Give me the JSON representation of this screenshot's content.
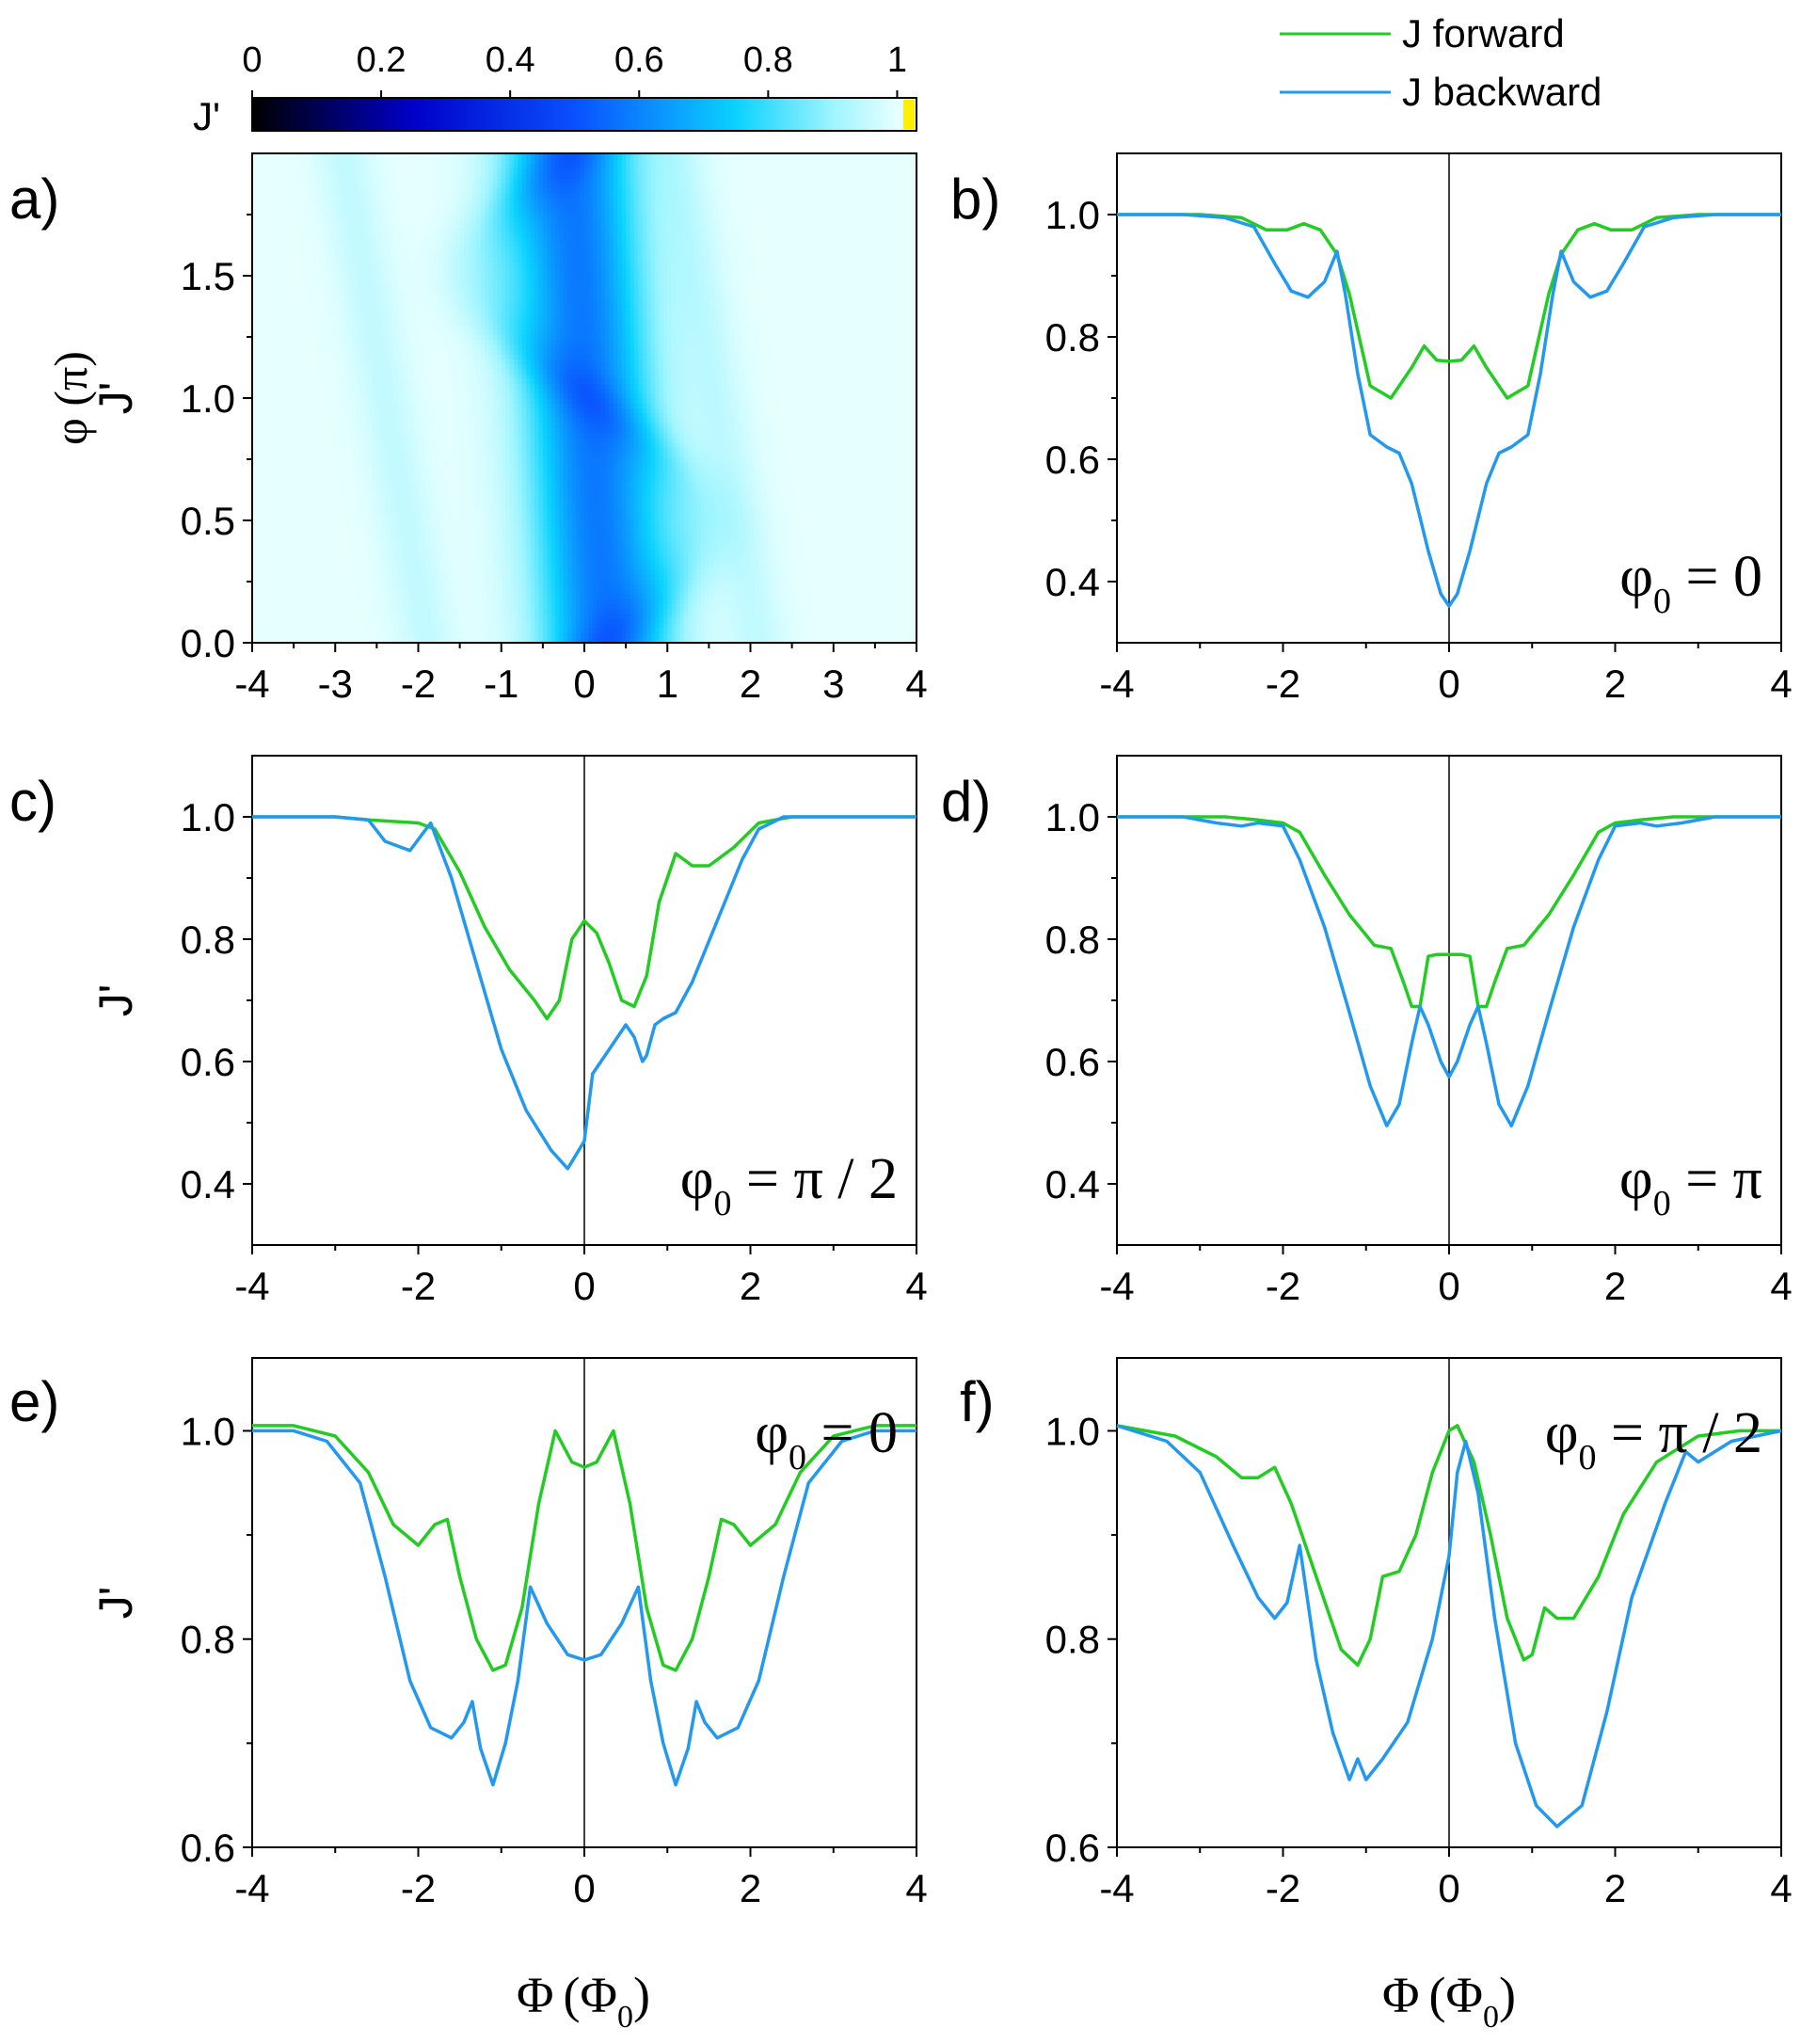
{
  "figure": {
    "xlabel_main": "Φ",
    "xlabel_open": "(Φ",
    "xlabel_sub": "0",
    "xlabel_close": ")"
  },
  "colors": {
    "forward": "#22cc22",
    "backward": "#2299ee",
    "axis": "#000000",
    "highlight": "#ffee00"
  },
  "legend": {
    "items": [
      {
        "label": "J forward",
        "color": "#22cc22"
      },
      {
        "label": "J backward",
        "color": "#2299ee"
      }
    ]
  },
  "colorbar": {
    "label": "J'",
    "ticks": [
      "0",
      "0.2",
      "0.4",
      "0.6",
      "0.8",
      "1"
    ],
    "tick_values": [
      0,
      0.2,
      0.4,
      0.6,
      0.8,
      1.0
    ],
    "range": [
      0,
      1.03
    ],
    "stops": [
      {
        "v": 0.0,
        "color": "#000000"
      },
      {
        "v": 0.25,
        "color": "#0000c8"
      },
      {
        "v": 0.5,
        "color": "#0a50ff"
      },
      {
        "v": 0.75,
        "color": "#0ad2ff"
      },
      {
        "v": 0.9,
        "color": "#9ef5ff"
      },
      {
        "v": 1.0,
        "color": "#e6ffff"
      }
    ]
  },
  "chart_data": [
    {
      "id": "a",
      "type": "heatmap",
      "panel_label": "a)",
      "ylabel": "φ (π)",
      "xlabel": "Φ (Φ0)",
      "xlim": [
        -4,
        4
      ],
      "ylim": [
        0,
        2
      ],
      "xticks": [
        -4,
        -3,
        -2,
        -1,
        0,
        1,
        2,
        3,
        4
      ],
      "xtick_labels": [
        "-4",
        "-3",
        "-2",
        "-1",
        "0",
        "1",
        "2",
        "3",
        "4"
      ],
      "yticks": [
        0,
        0.5,
        1,
        1.5
      ],
      "ytick_labels": [
        "0.0",
        "0.5",
        "1.0",
        "1.5"
      ],
      "colorbar_label": "J'",
      "description_values": {
        "min_J": 0.4,
        "max_J": 1.0
      }
    },
    {
      "id": "b",
      "type": "line",
      "panel_label": "b)",
      "ylabel": "J'",
      "annotation": {
        "prefix": "φ",
        "sub": "0",
        "text": " = 0",
        "pos": "bottom-right"
      },
      "xlim": [
        -4,
        4
      ],
      "ylim": [
        0.3,
        1.1
      ],
      "xticks": [
        -4,
        -2,
        0,
        2,
        4
      ],
      "xtick_labels": [
        "-4",
        "-2",
        "0",
        "2",
        "4"
      ],
      "yticks": [
        0.4,
        0.6,
        0.8,
        1.0
      ],
      "ytick_labels": [
        "0.4",
        "0.6",
        "0.8",
        "1.0"
      ],
      "symmetric": true,
      "series": [
        {
          "name": "J forward",
          "color": "#22cc22",
          "x": [
            0,
            0.15,
            0.3,
            0.45,
            0.7,
            0.95,
            1.2,
            1.35,
            1.55,
            1.75,
            1.95,
            2.2,
            2.5,
            3.0,
            3.5,
            4.0
          ],
          "y": [
            0.76,
            0.762,
            0.785,
            0.75,
            0.7,
            0.72,
            0.87,
            0.935,
            0.975,
            0.985,
            0.975,
            0.975,
            0.995,
            1.0,
            1.0,
            1.0
          ]
        },
        {
          "name": "J backward",
          "color": "#2299ee",
          "x": [
            0,
            0.1,
            0.25,
            0.45,
            0.6,
            0.75,
            0.95,
            1.1,
            1.25,
            1.35,
            1.5,
            1.7,
            1.9,
            2.1,
            2.35,
            2.7,
            3.2,
            4.0
          ],
          "y": [
            0.36,
            0.38,
            0.45,
            0.56,
            0.61,
            0.62,
            0.64,
            0.74,
            0.87,
            0.94,
            0.89,
            0.865,
            0.875,
            0.92,
            0.98,
            0.995,
            1.0,
            1.0
          ]
        }
      ]
    },
    {
      "id": "c",
      "type": "line",
      "panel_label": "c)",
      "ylabel": "J'",
      "annotation": {
        "prefix": "φ",
        "sub": "0",
        "text": " = π / 2",
        "pos": "bottom-right"
      },
      "xlim": [
        -4,
        4
      ],
      "ylim": [
        0.3,
        1.1
      ],
      "xticks": [
        -4,
        -2,
        0,
        2,
        4
      ],
      "xtick_labels": [
        "-4",
        "-2",
        "0",
        "2",
        "4"
      ],
      "yticks": [
        0.4,
        0.6,
        0.8,
        1.0
      ],
      "ytick_labels": [
        "0.4",
        "0.6",
        "0.8",
        "1.0"
      ],
      "symmetric": false,
      "series": [
        {
          "name": "J forward",
          "color": "#22cc22",
          "x": [
            -4,
            -3,
            -2.6,
            -2.0,
            -1.8,
            -1.5,
            -1.2,
            -0.9,
            -0.6,
            -0.45,
            -0.3,
            -0.15,
            0.0,
            0.15,
            0.3,
            0.45,
            0.6,
            0.75,
            0.9,
            1.1,
            1.3,
            1.5,
            1.8,
            2.1,
            2.5,
            3.0,
            3.5,
            4.0
          ],
          "y": [
            1.0,
            1.0,
            0.995,
            0.99,
            0.98,
            0.91,
            0.82,
            0.75,
            0.7,
            0.67,
            0.7,
            0.8,
            0.83,
            0.81,
            0.76,
            0.7,
            0.69,
            0.74,
            0.86,
            0.94,
            0.92,
            0.92,
            0.95,
            0.99,
            1.0,
            1.0,
            1.0,
            1.0
          ]
        },
        {
          "name": "J backward",
          "color": "#2299ee",
          "x": [
            -4,
            -3,
            -2.6,
            -2.4,
            -2.1,
            -1.85,
            -1.6,
            -1.3,
            -1.0,
            -0.7,
            -0.4,
            -0.2,
            0.0,
            0.1,
            0.3,
            0.5,
            0.6,
            0.7,
            0.75,
            0.85,
            0.95,
            1.1,
            1.3,
            1.6,
            1.9,
            2.1,
            2.4,
            2.8,
            3.3,
            4.0
          ],
          "y": [
            1.0,
            1.0,
            0.995,
            0.96,
            0.945,
            0.99,
            0.9,
            0.76,
            0.62,
            0.52,
            0.455,
            0.425,
            0.47,
            0.58,
            0.62,
            0.66,
            0.64,
            0.6,
            0.61,
            0.66,
            0.67,
            0.68,
            0.73,
            0.83,
            0.93,
            0.98,
            1.0,
            1.0,
            1.0,
            1.0
          ]
        }
      ]
    },
    {
      "id": "d",
      "type": "line",
      "panel_label": "d)",
      "ylabel": "",
      "annotation": {
        "prefix": "φ",
        "sub": "0",
        "text": " = π",
        "pos": "bottom-right"
      },
      "xlim": [
        -4,
        4
      ],
      "ylim": [
        0.3,
        1.1
      ],
      "xticks": [
        -4,
        -2,
        0,
        2,
        4
      ],
      "xtick_labels": [
        "-4",
        "-2",
        "0",
        "2",
        "4"
      ],
      "yticks": [
        0.4,
        0.6,
        0.8,
        1.0
      ],
      "ytick_labels": [
        "0.4",
        "0.6",
        "0.8",
        "1.0"
      ],
      "symmetric": true,
      "series": [
        {
          "name": "J forward",
          "color": "#22cc22",
          "x": [
            0,
            0.15,
            0.25,
            0.35,
            0.45,
            0.55,
            0.7,
            0.9,
            1.2,
            1.5,
            1.8,
            2.0,
            2.3,
            2.7,
            3.2,
            4.0
          ],
          "y": [
            0.775,
            0.775,
            0.772,
            0.69,
            0.69,
            0.73,
            0.785,
            0.79,
            0.84,
            0.905,
            0.975,
            0.99,
            0.995,
            1.0,
            1.0,
            1.0
          ]
        },
        {
          "name": "J backward",
          "color": "#2299ee",
          "x": [
            0,
            0.1,
            0.25,
            0.35,
            0.45,
            0.6,
            0.75,
            0.95,
            1.2,
            1.5,
            1.8,
            2.0,
            2.3,
            2.5,
            2.8,
            3.2,
            4.0
          ],
          "y": [
            0.575,
            0.6,
            0.66,
            0.69,
            0.63,
            0.53,
            0.495,
            0.56,
            0.68,
            0.82,
            0.93,
            0.985,
            0.99,
            0.985,
            0.99,
            1.0,
            1.0
          ]
        }
      ]
    },
    {
      "id": "e",
      "type": "line",
      "panel_label": "e)",
      "ylabel": "J'",
      "annotation": {
        "prefix": "φ",
        "sub": "0",
        "text": " = 0",
        "pos": "top-right"
      },
      "xlim": [
        -4,
        4
      ],
      "ylim": [
        0.6,
        1.07
      ],
      "xticks": [
        -4,
        -2,
        0,
        2,
        4
      ],
      "xtick_labels": [
        "-4",
        "-2",
        "0",
        "2",
        "4"
      ],
      "yticks": [
        0.6,
        0.8,
        1.0
      ],
      "ytick_labels": [
        "0.6",
        "0.8",
        "1.0"
      ],
      "symmetric": true,
      "series": [
        {
          "name": "J forward",
          "color": "#22cc22",
          "x": [
            0,
            0.15,
            0.35,
            0.55,
            0.75,
            0.95,
            1.1,
            1.3,
            1.5,
            1.65,
            1.8,
            2.0,
            2.3,
            2.6,
            3.0,
            3.5,
            4.0
          ],
          "y": [
            0.965,
            0.97,
            1.0,
            0.93,
            0.83,
            0.775,
            0.77,
            0.8,
            0.86,
            0.915,
            0.91,
            0.89,
            0.91,
            0.96,
            0.995,
            1.005,
            1.005
          ]
        },
        {
          "name": "J backward",
          "color": "#2299ee",
          "x": [
            0,
            0.2,
            0.45,
            0.65,
            0.8,
            0.95,
            1.1,
            1.25,
            1.35,
            1.45,
            1.6,
            1.85,
            2.1,
            2.4,
            2.7,
            3.1,
            3.5,
            4.0
          ],
          "y": [
            0.78,
            0.785,
            0.815,
            0.85,
            0.76,
            0.7,
            0.66,
            0.695,
            0.74,
            0.72,
            0.705,
            0.715,
            0.76,
            0.86,
            0.95,
            0.99,
            1.0,
            1.0
          ]
        }
      ]
    },
    {
      "id": "f",
      "type": "line",
      "panel_label": "f)",
      "ylabel": "",
      "annotation": {
        "prefix": "φ",
        "sub": "0",
        "text": " = π / 2",
        "pos": "top-right"
      },
      "xlim": [
        -4,
        4
      ],
      "ylim": [
        0.6,
        1.07
      ],
      "xticks": [
        -4,
        -2,
        0,
        2,
        4
      ],
      "xtick_labels": [
        "-4",
        "-2",
        "0",
        "2",
        "4"
      ],
      "yticks": [
        0.6,
        0.8,
        1.0
      ],
      "ytick_labels": [
        "0.6",
        "0.8",
        "1.0"
      ],
      "symmetric": false,
      "series": [
        {
          "name": "J forward",
          "color": "#22cc22",
          "x": [
            -4,
            -3.3,
            -2.8,
            -2.5,
            -2.3,
            -2.1,
            -1.9,
            -1.6,
            -1.3,
            -1.1,
            -0.95,
            -0.8,
            -0.6,
            -0.4,
            -0.2,
            0.0,
            0.1,
            0.3,
            0.5,
            0.7,
            0.9,
            1.0,
            1.15,
            1.3,
            1.5,
            1.8,
            2.1,
            2.5,
            3.0,
            3.5,
            4.0
          ],
          "y": [
            1.005,
            0.995,
            0.975,
            0.955,
            0.955,
            0.965,
            0.93,
            0.86,
            0.79,
            0.775,
            0.8,
            0.86,
            0.865,
            0.9,
            0.96,
            1.0,
            1.005,
            0.97,
            0.9,
            0.82,
            0.78,
            0.785,
            0.83,
            0.82,
            0.82,
            0.86,
            0.92,
            0.97,
            0.995,
            1.0,
            1.0
          ]
        },
        {
          "name": "J backward",
          "color": "#2299ee",
          "x": [
            -4,
            -3.4,
            -3.0,
            -2.6,
            -2.3,
            -2.1,
            -1.95,
            -1.8,
            -1.6,
            -1.4,
            -1.2,
            -1.1,
            -1.0,
            -0.8,
            -0.5,
            -0.2,
            0.0,
            0.1,
            0.2,
            0.35,
            0.55,
            0.8,
            1.05,
            1.3,
            1.6,
            1.9,
            2.2,
            2.6,
            2.85,
            3.0,
            3.4,
            4.0
          ],
          "y": [
            1.005,
            0.99,
            0.96,
            0.89,
            0.84,
            0.82,
            0.835,
            0.89,
            0.78,
            0.71,
            0.665,
            0.685,
            0.665,
            0.685,
            0.72,
            0.8,
            0.88,
            0.96,
            0.99,
            0.94,
            0.82,
            0.7,
            0.64,
            0.62,
            0.64,
            0.73,
            0.84,
            0.93,
            0.98,
            0.97,
            0.99,
            1.0
          ]
        }
      ]
    }
  ]
}
